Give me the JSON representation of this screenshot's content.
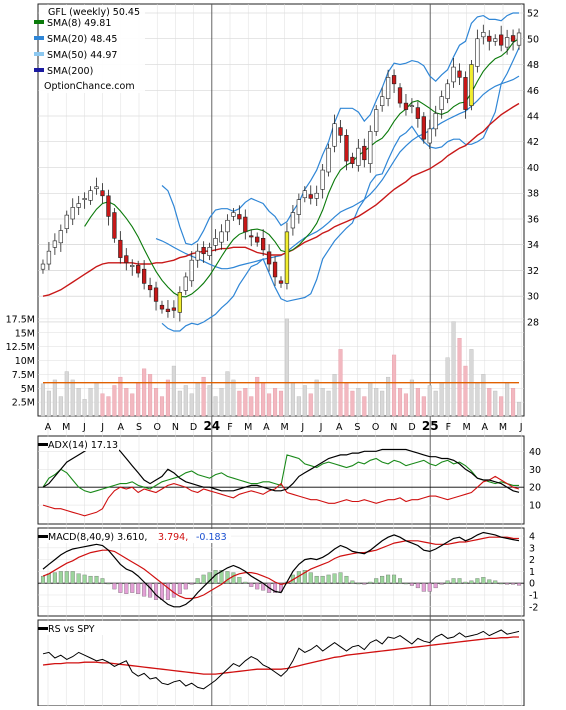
{
  "chart_data": {
    "type": "stock-chart",
    "main_panel": {
      "title": "GFL (weekly) 50.45",
      "watermark": "OptionChance.com",
      "legend": [
        {
          "label": "SMA(8) 49.81",
          "color": "#0a7a0a"
        },
        {
          "label": "SMA(20) 48.45",
          "color": "#2f86d6"
        },
        {
          "label": "SMA(50) 44.97",
          "color": "#8cc8f0"
        },
        {
          "label": "SMA(200)",
          "color": "#1a1aa0"
        }
      ],
      "y_ticks": [
        "52",
        "50",
        "48",
        "46",
        "44",
        "42",
        "40",
        "38",
        "36",
        "34",
        "32",
        "30",
        "28"
      ],
      "y_range": [
        26.6,
        52.7
      ],
      "volume_ticks": [
        "17.5M",
        "15M",
        "12.5M",
        "10M",
        "7.5M",
        "5M",
        "2.5M"
      ],
      "volume_range": [
        0,
        20000000
      ],
      "x_labels": [
        "A",
        "M",
        "J",
        "J",
        "A",
        "S",
        "O",
        "N",
        "D",
        "24",
        "F",
        "M",
        "A",
        "M",
        "J",
        "J",
        "A",
        "S",
        "O",
        "N",
        "D",
        "25",
        "F",
        "M",
        "A",
        "M",
        "J"
      ],
      "close_series": [
        32.5,
        33.5,
        34.3,
        35.1,
        36.3,
        36.9,
        37.2,
        37.6,
        38.2,
        38.5,
        37.8,
        36.2,
        34.5,
        33.0,
        32.6,
        32.4,
        31.8,
        31.0,
        30.5,
        29.6,
        29.0,
        28.8,
        28.9,
        30.3,
        31.5,
        32.8,
        33.5,
        33.3,
        33.8,
        34.5,
        35.0,
        35.9,
        36.5,
        36.0,
        35.0,
        34.6,
        34.2,
        33.6,
        32.5,
        31.5,
        31.0,
        35.0,
        36.5,
        37.5,
        38.2,
        37.6,
        38.0,
        39.8,
        41.5,
        43.4,
        42.5,
        40.5,
        40.3,
        41.5,
        40.6,
        42.8,
        44.5,
        45.5,
        47.0,
        46.5,
        45.0,
        44.5,
        44.8,
        43.8,
        42.2,
        43.0,
        44.2,
        45.5,
        46.5,
        47.8,
        47.0,
        44.5,
        48.0,
        50.0,
        50.5,
        49.8,
        50.0,
        49.5,
        50.1,
        49.8,
        50.45
      ],
      "band_upper_series": [
        null,
        null,
        null,
        null,
        null,
        null,
        null,
        null,
        null,
        null,
        null,
        null,
        null,
        null,
        null,
        null,
        null,
        null,
        null,
        null,
        38.6,
        38.2,
        37.0,
        35.4,
        34.1,
        34.0,
        34.3,
        35.1,
        36.1,
        36.7,
        36.8,
        36.8,
        36.6,
        36.8,
        37.3,
        37.6,
        37.4,
        37.2,
        36.6,
        36.2,
        35.5,
        35.8,
        36.6,
        37.3,
        38.3,
        39.0,
        39.8,
        41.0,
        42.0,
        43.5,
        44.6,
        44.6,
        44.6,
        44.3,
        43.6,
        44.1,
        45.2,
        46.2,
        47.4,
        48.1,
        48.0,
        48.1,
        48.3,
        48.2,
        47.9,
        47.1,
        46.7,
        47.2,
        47.6,
        48.6,
        49.5,
        49.8,
        51.2,
        51.7,
        51.8,
        51.5,
        51.5,
        51.4,
        51.8,
        52.0,
        52.0
      ],
      "band_lower_series": [
        null,
        null,
        null,
        null,
        null,
        null,
        null,
        null,
        null,
        null,
        null,
        null,
        null,
        null,
        null,
        null,
        null,
        null,
        null,
        null,
        27.9,
        27.5,
        27.3,
        27.3,
        27.7,
        27.9,
        27.8,
        28.0,
        28.3,
        28.6,
        29.1,
        29.5,
        30.0,
        30.9,
        31.6,
        32.3,
        32.5,
        32.9,
        31.8,
        30.7,
        29.8,
        29.6,
        29.7,
        29.8,
        29.9,
        30.2,
        31.3,
        32.9,
        33.6,
        34.3,
        34.8,
        35.3,
        35.7,
        36.8,
        37.5,
        38.8,
        39.4,
        39.5,
        40.6,
        41.6,
        42.4,
        42.7,
        43.2,
        42.5,
        42.0,
        41.6,
        41.5,
        41.6,
        42.0,
        42.2,
        42.2,
        41.8,
        41.8,
        42.0,
        42.3,
        43.3,
        44.3,
        46.5,
        47.3,
        48.3,
        49.3
      ],
      "sma200_series": [
        30.0,
        30.1,
        30.3,
        30.5,
        30.8,
        31.1,
        31.4,
        31.7,
        32.0,
        32.3,
        32.5,
        32.6,
        32.6,
        32.6,
        32.6,
        32.6,
        32.5,
        32.5,
        32.5,
        32.6,
        32.6,
        32.7,
        32.8,
        33.0,
        33.1,
        33.3,
        33.4,
        33.5,
        33.5,
        33.6,
        33.7,
        33.7,
        33.8,
        33.8,
        33.8,
        33.6,
        33.4,
        33.3,
        33.2,
        33.2,
        33.2,
        33.4,
        33.6,
        33.9,
        34.2,
        34.4,
        34.6,
        34.9,
        35.1,
        35.4,
        35.6,
        35.8,
        36.0,
        36.2,
        36.5,
        36.8,
        37.1,
        37.5,
        37.9,
        38.3,
        38.6,
        38.9,
        39.3,
        39.5,
        39.7,
        39.9,
        40.2,
        40.5,
        40.9,
        41.2,
        41.5,
        41.7,
        42.1,
        42.5,
        42.8,
        43.3,
        43.7,
        44.1,
        44.4,
        44.7,
        44.97
      ],
      "volume_series": [
        5.8,
        4.5,
        6.5,
        3.5,
        8.0,
        6.5,
        5.0,
        3.0,
        5.0,
        6.0,
        4.0,
        3.5,
        5.5,
        7.0,
        5.0,
        4.0,
        6.0,
        8.5,
        7.5,
        5.0,
        3.5,
        6.5,
        9.0,
        4.5,
        5.5,
        4.0,
        6.0,
        7.0,
        5.5,
        3.5,
        5.0,
        8.0,
        6.5,
        4.5,
        5.0,
        3.5,
        7.0,
        6.0,
        4.0,
        5.0,
        4.5,
        17.5,
        6.0,
        3.5,
        5.5,
        4.0,
        6.5,
        5.0,
        4.5,
        7.5,
        12.0,
        6.0,
        4.5,
        5.0,
        3.5,
        6.0,
        5.0,
        4.5,
        7.0,
        11.0,
        5.0,
        4.0,
        6.5,
        5.0,
        3.5,
        5.5,
        4.5,
        6.0,
        10.5,
        17.0,
        14.0,
        9.0,
        12.0,
        6.0,
        7.5,
        5.0,
        4.5,
        3.5,
        6.0,
        5.0,
        2.5
      ],
      "volume_avg": 6.0
    },
    "adx_panel": {
      "label": "ADX(14) 17.13",
      "y_ticks": [
        "40",
        "30",
        "20",
        "10"
      ],
      "y_range": [
        0,
        48
      ],
      "reference_line": 20,
      "adx_series": [
        20,
        22,
        26,
        30,
        34,
        36,
        38,
        40,
        42,
        43,
        44,
        44,
        43,
        40,
        36,
        32,
        28,
        24,
        22,
        24,
        26,
        30,
        28,
        25,
        23,
        22,
        21,
        20,
        20,
        19,
        18,
        18,
        18,
        19,
        20,
        21,
        21,
        20,
        19,
        18,
        18,
        19,
        22,
        26,
        28,
        30,
        32,
        34,
        36,
        37,
        38,
        38,
        39,
        39,
        40,
        40,
        40,
        41,
        41,
        41,
        41,
        41,
        40,
        39,
        38,
        37,
        37,
        36,
        36,
        35,
        33,
        30,
        28,
        25,
        24,
        24,
        23,
        22,
        20,
        18,
        17.13
      ],
      "plus_di_series": [
        20,
        25,
        27,
        30,
        28,
        24,
        20,
        18,
        17,
        18,
        19,
        20,
        21,
        22,
        22,
        23,
        21,
        20,
        19,
        21,
        23,
        24,
        25,
        26,
        28,
        29,
        27,
        26,
        25,
        27,
        28,
        26,
        25,
        24,
        23,
        22,
        22,
        23,
        23,
        22,
        21,
        38,
        37,
        36,
        33,
        32,
        31,
        33,
        34,
        33,
        32,
        31,
        32,
        34,
        33,
        35,
        36,
        34,
        33,
        35,
        34,
        32,
        33,
        34,
        35,
        33,
        32,
        34,
        35,
        33,
        34,
        32,
        29,
        25,
        24,
        23,
        22,
        23,
        22,
        21,
        21
      ],
      "minus_di_series": [
        10,
        9,
        8,
        8,
        7,
        6,
        5,
        4,
        5,
        6,
        8,
        14,
        18,
        20,
        19,
        20,
        17,
        19,
        18,
        17,
        19,
        21,
        22,
        21,
        20,
        18,
        17,
        19,
        18,
        17,
        16,
        15,
        14,
        16,
        17,
        18,
        17,
        16,
        18,
        19,
        22,
        17,
        16,
        15,
        14,
        13,
        13,
        12,
        11,
        11,
        12,
        13,
        12,
        12,
        13,
        12,
        11,
        12,
        13,
        13,
        14,
        12,
        13,
        13,
        14,
        15,
        15,
        14,
        13,
        14,
        15,
        16,
        17,
        20,
        23,
        24,
        26,
        24,
        22,
        20,
        19
      ]
    },
    "macd_panel": {
      "label": "MACD(8,40,9) 3.610,",
      "signal_label": "3.794,",
      "hist_label": "-0.183",
      "y_ticks": [
        "4",
        "3",
        "2",
        "1",
        "0",
        "-1",
        "-2"
      ],
      "y_range": [
        -2.7,
        4.6
      ],
      "macd_series": [
        1.2,
        1.6,
        2.0,
        2.4,
        2.7,
        2.9,
        3.0,
        3.1,
        3.2,
        3.3,
        3.2,
        2.8,
        2.2,
        1.6,
        1.2,
        1.0,
        0.6,
        0.1,
        -0.4,
        -1.0,
        -1.4,
        -1.8,
        -2.0,
        -2.0,
        -1.8,
        -1.4,
        -0.8,
        -0.3,
        0.2,
        0.7,
        1.0,
        1.3,
        1.5,
        1.3,
        1.0,
        0.6,
        0.3,
        0.0,
        -0.4,
        -0.7,
        -0.8,
        0.1,
        1.0,
        1.6,
        2.0,
        2.1,
        2.0,
        2.2,
        2.5,
        2.9,
        3.2,
        3.0,
        2.7,
        2.6,
        2.5,
        2.8,
        3.2,
        3.6,
        3.9,
        4.1,
        3.9,
        3.6,
        3.4,
        3.2,
        2.8,
        2.7,
        2.9,
        3.2,
        3.5,
        3.8,
        3.9,
        3.6,
        3.8,
        4.1,
        4.3,
        4.2,
        4.1,
        3.9,
        3.8,
        3.7,
        3.61
      ],
      "signal_series": [
        0.6,
        0.8,
        1.1,
        1.4,
        1.7,
        1.9,
        2.2,
        2.4,
        2.6,
        2.7,
        2.8,
        2.8,
        2.7,
        2.4,
        2.1,
        1.8,
        1.5,
        1.2,
        0.8,
        0.4,
        0.0,
        -0.4,
        -0.8,
        -1.1,
        -1.3,
        -1.3,
        -1.2,
        -1.0,
        -0.7,
        -0.4,
        -0.1,
        0.3,
        0.6,
        0.8,
        0.9,
        0.9,
        0.8,
        0.6,
        0.4,
        0.1,
        -0.1,
        0.0,
        0.3,
        0.6,
        0.9,
        1.2,
        1.4,
        1.6,
        1.8,
        2.1,
        2.3,
        2.4,
        2.5,
        2.6,
        2.6,
        2.7,
        2.8,
        3.0,
        3.2,
        3.4,
        3.5,
        3.6,
        3.6,
        3.6,
        3.5,
        3.4,
        3.3,
        3.3,
        3.3,
        3.4,
        3.5,
        3.5,
        3.6,
        3.7,
        3.8,
        3.9,
        3.9,
        3.9,
        3.9,
        3.8,
        3.794
      ]
    },
    "rs_panel": {
      "label": "RS vs SPY",
      "y_range": [
        0,
        1
      ],
      "rs_series": [
        0.66,
        0.68,
        0.6,
        0.64,
        0.58,
        0.62,
        0.68,
        0.64,
        0.6,
        0.56,
        0.58,
        0.54,
        0.48,
        0.52,
        0.56,
        0.4,
        0.34,
        0.38,
        0.3,
        0.32,
        0.24,
        0.22,
        0.26,
        0.28,
        0.2,
        0.24,
        0.18,
        0.16,
        0.22,
        0.28,
        0.36,
        0.44,
        0.52,
        0.48,
        0.56,
        0.62,
        0.58,
        0.5,
        0.46,
        0.4,
        0.34,
        0.42,
        0.56,
        0.74,
        0.68,
        0.72,
        0.78,
        0.7,
        0.76,
        0.82,
        0.76,
        0.7,
        0.76,
        0.78,
        0.72,
        0.82,
        0.86,
        0.8,
        0.9,
        0.88,
        0.92,
        0.86,
        0.8,
        0.88,
        0.84,
        0.82,
        0.9,
        0.94,
        0.88,
        0.9,
        0.96,
        0.9,
        0.92,
        0.94,
        0.98,
        0.92,
        0.96,
        1.0,
        0.94,
        0.96,
        0.98
      ],
      "rs_avg_series": [
        0.5,
        0.51,
        0.52,
        0.52,
        0.53,
        0.53,
        0.53,
        0.54,
        0.54,
        0.54,
        0.53,
        0.53,
        0.52,
        0.51,
        0.5,
        0.49,
        0.48,
        0.47,
        0.46,
        0.45,
        0.44,
        0.43,
        0.42,
        0.41,
        0.4,
        0.39,
        0.38,
        0.37,
        0.37,
        0.37,
        0.38,
        0.39,
        0.4,
        0.41,
        0.42,
        0.43,
        0.44,
        0.44,
        0.44,
        0.44,
        0.44,
        0.45,
        0.47,
        0.49,
        0.51,
        0.53,
        0.55,
        0.57,
        0.59,
        0.61,
        0.62,
        0.64,
        0.65,
        0.66,
        0.67,
        0.68,
        0.69,
        0.7,
        0.71,
        0.72,
        0.73,
        0.74,
        0.75,
        0.76,
        0.77,
        0.78,
        0.79,
        0.8,
        0.81,
        0.82,
        0.83,
        0.84,
        0.85,
        0.86,
        0.87,
        0.88,
        0.88,
        0.89,
        0.89,
        0.9,
        0.9
      ]
    }
  }
}
